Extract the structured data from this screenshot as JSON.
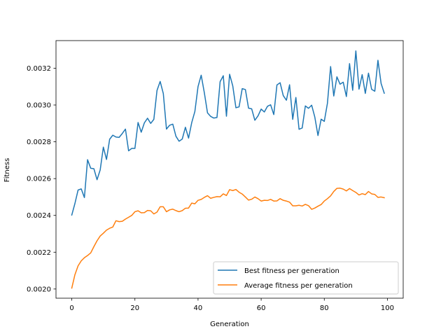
{
  "chart_data": {
    "type": "line",
    "title": "",
    "xlabel": "Generation",
    "ylabel": "Fitness",
    "xlim": [
      -5,
      105
    ],
    "ylim": [
      0.00195,
      0.00335
    ],
    "xticks": [
      0,
      20,
      40,
      60,
      80,
      100
    ],
    "xtick_labels": [
      "0",
      "20",
      "40",
      "60",
      "80",
      "100"
    ],
    "yticks": [
      0.002,
      0.0022,
      0.0024,
      0.0026,
      0.0028,
      0.003,
      0.0032
    ],
    "ytick_labels": [
      "0.0020",
      "0.0022",
      "0.0024",
      "0.0026",
      "0.0028",
      "0.0030",
      "0.0032"
    ],
    "grid": false,
    "legend_position": "lower-right",
    "colors": {
      "best": "#1f77b4",
      "average": "#ff7f0e"
    },
    "series": [
      {
        "name": "Best fitness per generation",
        "color": "#1f77b4",
        "values": [
          0.002402,
          0.002465,
          0.002538,
          0.002544,
          0.002497,
          0.002703,
          0.002656,
          0.002654,
          0.002594,
          0.002647,
          0.002771,
          0.002704,
          0.002814,
          0.002836,
          0.002826,
          0.002824,
          0.002845,
          0.002869,
          0.002751,
          0.002764,
          0.002764,
          0.002905,
          0.002852,
          0.002903,
          0.002928,
          0.0029,
          0.002922,
          0.003079,
          0.003128,
          0.003062,
          0.002869,
          0.00289,
          0.002896,
          0.00283,
          0.002803,
          0.002815,
          0.002879,
          0.00282,
          0.002904,
          0.002965,
          0.0031,
          0.003162,
          0.003066,
          0.002957,
          0.002938,
          0.002929,
          0.002932,
          0.003127,
          0.003159,
          0.002939,
          0.003167,
          0.003104,
          0.002985,
          0.00299,
          0.003089,
          0.003084,
          0.002983,
          0.002979,
          0.002917,
          0.002941,
          0.002978,
          0.002962,
          0.002993,
          0.003001,
          0.002948,
          0.003109,
          0.003121,
          0.003051,
          0.003026,
          0.00311,
          0.002922,
          0.003041,
          0.002868,
          0.002875,
          0.002995,
          0.002982,
          0.002999,
          0.002934,
          0.002834,
          0.002923,
          0.002911,
          0.00301,
          0.003209,
          0.003049,
          0.003153,
          0.003113,
          0.003124,
          0.003046,
          0.003225,
          0.00308,
          0.003294,
          0.003086,
          0.003165,
          0.003063,
          0.003173,
          0.003085,
          0.003075,
          0.003243,
          0.003117,
          0.003064
        ]
      },
      {
        "name": "Average fitness per generation",
        "color": "#ff7f0e",
        "values": [
          0.002005,
          0.002078,
          0.002126,
          0.002153,
          0.00217,
          0.002182,
          0.002196,
          0.00223,
          0.002262,
          0.002288,
          0.002303,
          0.00232,
          0.00233,
          0.002337,
          0.002371,
          0.002366,
          0.002368,
          0.00238,
          0.00239,
          0.0024,
          0.00242,
          0.002425,
          0.002414,
          0.002415,
          0.002427,
          0.002425,
          0.002408,
          0.002418,
          0.002447,
          0.002447,
          0.00242,
          0.00243,
          0.002434,
          0.002426,
          0.00242,
          0.002426,
          0.002439,
          0.00244,
          0.002467,
          0.002463,
          0.002482,
          0.002487,
          0.002498,
          0.002507,
          0.002493,
          0.002498,
          0.002502,
          0.002501,
          0.002517,
          0.002508,
          0.00254,
          0.002535,
          0.002541,
          0.002526,
          0.002516,
          0.0025,
          0.002483,
          0.002488,
          0.0025,
          0.002491,
          0.002478,
          0.002482,
          0.002481,
          0.002487,
          0.002478,
          0.002479,
          0.002491,
          0.002482,
          0.002478,
          0.002472,
          0.002452,
          0.002452,
          0.002455,
          0.002451,
          0.00246,
          0.002453,
          0.002433,
          0.00244,
          0.00245,
          0.002459,
          0.002478,
          0.002491,
          0.002506,
          0.00253,
          0.002547,
          0.002548,
          0.002543,
          0.002533,
          0.002546,
          0.002535,
          0.002525,
          0.002511,
          0.002518,
          0.002513,
          0.00253,
          0.002517,
          0.002514,
          0.002498,
          0.0025,
          0.002496
        ]
      }
    ]
  }
}
